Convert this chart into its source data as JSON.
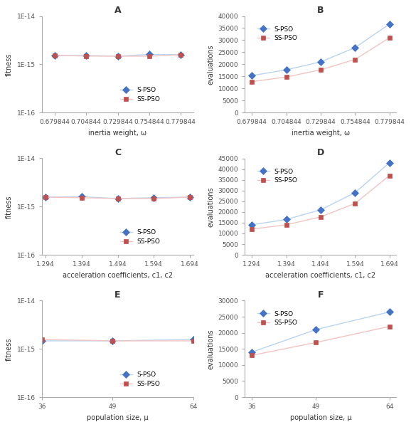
{
  "panel_A": {
    "title": "A",
    "xlabel": "inertia weight, ω",
    "ylabel": "fitness",
    "xticklabels": [
      "0.679844",
      "0.704844",
      "0.729844",
      "0.754844",
      "0.779844"
    ],
    "x": [
      0.679844,
      0.704844,
      0.729844,
      0.754844,
      0.779844
    ],
    "spso": [
      1.5e-15,
      1.52e-15,
      1.47e-15,
      1.6e-15,
      1.58e-15
    ],
    "sspso": [
      1.53e-15,
      1.48e-15,
      1.47e-15,
      1.47e-15,
      1.57e-15
    ],
    "ylim_log": [
      1e-16,
      1e-14
    ],
    "yticks": [
      1e-16,
      1e-15,
      1e-14
    ],
    "yticklabels": [
      "1E-16",
      "1E-15",
      "1E-14"
    ]
  },
  "panel_B": {
    "title": "B",
    "xlabel": "inertia weight, ω",
    "ylabel": "evaluations",
    "xticklabels": [
      "0.679844",
      "0.704844",
      "0.729844",
      "0.754844",
      "0.779844"
    ],
    "x": [
      0.679844,
      0.704844,
      0.729844,
      0.754844,
      0.779844
    ],
    "spso": [
      15300,
      17700,
      21000,
      26900,
      36700
    ],
    "sspso": [
      12800,
      14700,
      17700,
      22000,
      31000
    ],
    "ylim": [
      0,
      40000
    ],
    "yticks": [
      0,
      5000,
      10000,
      15000,
      20000,
      25000,
      30000,
      35000,
      40000
    ]
  },
  "panel_C": {
    "title": "C",
    "xlabel": "acceleration coefficients, c1, c2",
    "ylabel": "fitness",
    "xticklabels": [
      "1.294",
      "1.394",
      "1.494",
      "1.594",
      "1.694"
    ],
    "x": [
      1.294,
      1.394,
      1.494,
      1.594,
      1.694
    ],
    "spso": [
      1.57e-15,
      1.6e-15,
      1.47e-15,
      1.53e-15,
      1.57e-15
    ],
    "sspso": [
      1.57e-15,
      1.53e-15,
      1.47e-15,
      1.47e-15,
      1.57e-15
    ],
    "ylim_log": [
      1e-16,
      1e-14
    ],
    "yticks": [
      1e-16,
      1e-15,
      1e-14
    ],
    "yticklabels": [
      "1E-16",
      "1E-15",
      "1E-14"
    ]
  },
  "panel_D": {
    "title": "D",
    "xlabel": "acceleration coefficients, c1, c2",
    "ylabel": "evaluations",
    "xticklabels": [
      "1.294",
      "1.394",
      "1.494",
      "1.594",
      "1.694"
    ],
    "x": [
      1.294,
      1.394,
      1.494,
      1.594,
      1.694
    ],
    "spso": [
      14000,
      16500,
      21000,
      29000,
      43000
    ],
    "sspso": [
      12000,
      14000,
      17700,
      24000,
      37000
    ],
    "ylim": [
      0,
      45000
    ],
    "yticks": [
      0,
      5000,
      10000,
      15000,
      20000,
      25000,
      30000,
      35000,
      40000,
      45000
    ]
  },
  "panel_E": {
    "title": "E",
    "xlabel": "population size, μ",
    "ylabel": "fitness",
    "xticklabels": [
      "36",
      "49",
      "64"
    ],
    "x": [
      36,
      49,
      64
    ],
    "spso": [
      1.47e-15,
      1.47e-15,
      1.57e-15
    ],
    "sspso": [
      1.57e-15,
      1.47e-15,
      1.47e-15
    ],
    "ylim_log": [
      1e-16,
      1e-14
    ],
    "yticks": [
      1e-16,
      1e-15,
      1e-14
    ],
    "yticklabels": [
      "1E-16",
      "1E-15",
      "1E-14"
    ]
  },
  "panel_F": {
    "title": "F",
    "xlabel": "population size, μ",
    "ylabel": "evaluations",
    "xticklabels": [
      "36",
      "49",
      "64"
    ],
    "x": [
      36,
      49,
      64
    ],
    "spso": [
      14000,
      21000,
      26500
    ],
    "sspso": [
      13000,
      17000,
      22000
    ],
    "ylim": [
      0,
      30000
    ],
    "yticks": [
      0,
      5000,
      10000,
      15000,
      20000,
      25000,
      30000
    ]
  },
  "spso_color": "#4472C4",
  "sspso_color": "#C0504D",
  "spso_line_color": "#B8D4F0",
  "sspso_line_color": "#F2C4C3",
  "spso_label": "S-PSO",
  "sspso_label": "SS-PSO",
  "bg_color": "#FFFFFF",
  "spine_color": "#AAAAAA",
  "tick_color": "#555555"
}
